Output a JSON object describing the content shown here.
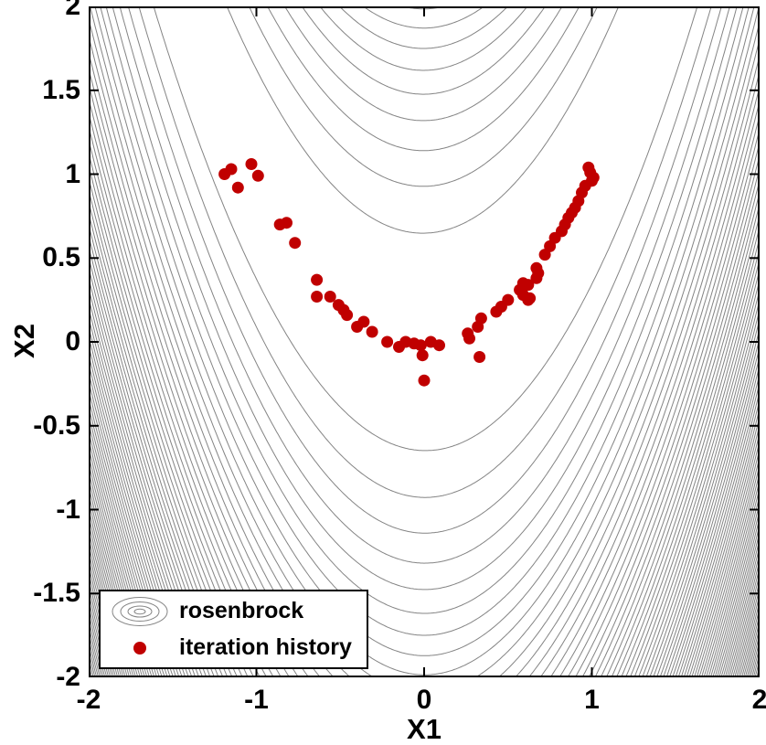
{
  "chart_data": {
    "type": "contour+scatter",
    "title": "",
    "xlabel": "X1",
    "ylabel": "X2",
    "xlim": [
      -2,
      2
    ],
    "ylim": [
      -2,
      2
    ],
    "grid": false,
    "x_ticks": [
      "-2",
      "-1",
      "0",
      "1",
      "2"
    ],
    "y_ticks": [
      "2",
      "1.5",
      "1",
      "0.5",
      "0",
      "-0.5",
      "-1",
      "-1.5",
      "-2"
    ],
    "contour": {
      "name": "rosenbrock",
      "function": "(1 - x1)^2 + 100*(x2 - x1^2)^2",
      "levels_start": 43,
      "levels_step": 44,
      "levels_count": 81,
      "line_color": "#848484"
    },
    "scatter": {
      "name": "iteration history",
      "color": "#c00000",
      "marker_radius_px": 6.5,
      "points": [
        [
          -1.19,
          1.0
        ],
        [
          -1.15,
          1.03
        ],
        [
          -1.03,
          1.06
        ],
        [
          -0.99,
          0.99
        ],
        [
          -1.11,
          0.92
        ],
        [
          -0.86,
          0.7
        ],
        [
          -0.82,
          0.71
        ],
        [
          -0.77,
          0.59
        ],
        [
          -0.64,
          0.37
        ],
        [
          -0.64,
          0.27
        ],
        [
          -0.56,
          0.27
        ],
        [
          -0.51,
          0.22
        ],
        [
          -0.48,
          0.19
        ],
        [
          -0.46,
          0.16
        ],
        [
          -0.4,
          0.09
        ],
        [
          -0.36,
          0.12
        ],
        [
          -0.31,
          0.06
        ],
        [
          -0.22,
          0.0
        ],
        [
          -0.15,
          -0.03
        ],
        [
          -0.11,
          0.0
        ],
        [
          -0.06,
          -0.01
        ],
        [
          -0.02,
          -0.02
        ],
        [
          -0.01,
          -0.08
        ],
        [
          0.04,
          0.0
        ],
        [
          0.09,
          -0.02
        ],
        [
          0.0,
          -0.23
        ],
        [
          0.26,
          0.05
        ],
        [
          0.27,
          0.02
        ],
        [
          0.32,
          0.09
        ],
        [
          0.34,
          0.14
        ],
        [
          0.33,
          -0.09
        ],
        [
          0.43,
          0.18
        ],
        [
          0.46,
          0.21
        ],
        [
          0.5,
          0.25
        ],
        [
          0.62,
          0.25
        ],
        [
          0.57,
          0.31
        ],
        [
          0.59,
          0.28
        ],
        [
          0.63,
          0.26
        ],
        [
          0.59,
          0.35
        ],
        [
          0.62,
          0.34
        ],
        [
          0.67,
          0.38
        ],
        [
          0.67,
          0.44
        ],
        [
          0.68,
          0.41
        ],
        [
          0.72,
          0.52
        ],
        [
          0.75,
          0.57
        ],
        [
          0.78,
          0.62
        ],
        [
          0.82,
          0.66
        ],
        [
          0.84,
          0.7
        ],
        [
          0.86,
          0.74
        ],
        [
          0.88,
          0.77
        ],
        [
          0.9,
          0.8
        ],
        [
          0.92,
          0.84
        ],
        [
          0.94,
          0.89
        ],
        [
          0.96,
          0.93
        ],
        [
          0.99,
          1.01
        ],
        [
          1.01,
          0.98
        ],
        [
          1.0,
          0.96
        ],
        [
          0.98,
          1.04
        ]
      ]
    },
    "legend": [
      {
        "marker": "contour-ellipses",
        "label": "rosenbrock",
        "color": "#848484"
      },
      {
        "marker": "filled-dot",
        "label": "iteration history",
        "color": "#c00000"
      }
    ]
  }
}
